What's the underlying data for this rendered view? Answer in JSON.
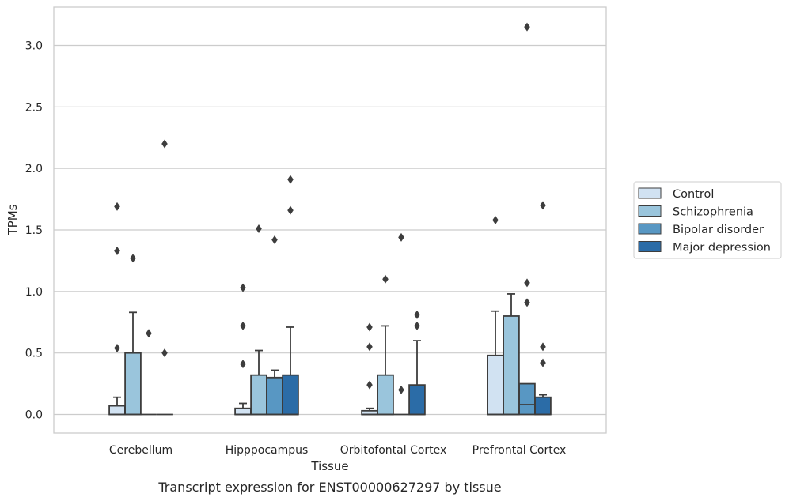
{
  "chart_data": {
    "type": "box",
    "caption": "Transcript expression for ENST00000627297 by tissue",
    "xlabel": "Tissue",
    "ylabel": "TPMs",
    "ylim": [
      -0.15,
      3.32
    ],
    "yticks": [
      0.0,
      0.5,
      1.0,
      1.5,
      2.0,
      2.5,
      3.0
    ],
    "ytick_labels": [
      "0.0",
      "0.5",
      "1.0",
      "1.5",
      "2.0",
      "2.5",
      "3.0"
    ],
    "grid": "horizontal",
    "legend_position": "right",
    "categories": [
      "Cerebellum",
      "Hipppocampus",
      "Orbitofontal Cortex",
      "Prefrontal Cortex"
    ],
    "series": [
      {
        "name": "Control",
        "color": "#d1e2f2",
        "boxes": [
          {
            "whisker_low": 0.0,
            "q1": 0.0,
            "median": 0.0,
            "q3": 0.07,
            "whisker_high": 0.14,
            "outliers": [
              0.54,
              1.33,
              1.69
            ]
          },
          {
            "whisker_low": 0.0,
            "q1": 0.0,
            "median": 0.0,
            "q3": 0.05,
            "whisker_high": 0.09,
            "outliers": [
              0.41,
              0.72,
              1.03
            ]
          },
          {
            "whisker_low": 0.0,
            "q1": 0.0,
            "median": 0.0,
            "q3": 0.03,
            "whisker_high": 0.05,
            "outliers": [
              0.24,
              0.55,
              0.71
            ]
          },
          {
            "whisker_low": 0.0,
            "q1": 0.0,
            "median": 0.0,
            "q3": 0.48,
            "whisker_high": 0.84,
            "outliers": [
              1.58
            ]
          }
        ]
      },
      {
        "name": "Schizophrenia",
        "color": "#9ac5dc",
        "boxes": [
          {
            "whisker_low": 0.0,
            "q1": 0.0,
            "median": 0.0,
            "q3": 0.5,
            "whisker_high": 0.83,
            "outliers": [
              1.27
            ]
          },
          {
            "whisker_low": 0.0,
            "q1": 0.0,
            "median": 0.0,
            "q3": 0.32,
            "whisker_high": 0.52,
            "outliers": [
              1.51
            ]
          },
          {
            "whisker_low": 0.0,
            "q1": 0.0,
            "median": 0.0,
            "q3": 0.32,
            "whisker_high": 0.72,
            "outliers": [
              1.1
            ]
          },
          {
            "whisker_low": 0.0,
            "q1": 0.0,
            "median": 0.0,
            "q3": 0.8,
            "whisker_high": 0.98,
            "outliers": []
          }
        ]
      },
      {
        "name": "Bipolar disorder",
        "color": "#5897c3",
        "boxes": [
          {
            "whisker_low": 0.0,
            "q1": 0.0,
            "median": 0.0,
            "q3": 0.0,
            "whisker_high": 0.0,
            "outliers": [
              0.66
            ]
          },
          {
            "whisker_low": 0.0,
            "q1": 0.0,
            "median": 0.0,
            "q3": 0.3,
            "whisker_high": 0.36,
            "outliers": [
              1.42
            ]
          },
          {
            "whisker_low": 0.0,
            "q1": 0.0,
            "median": 0.0,
            "q3": 0.0,
            "whisker_high": 0.0,
            "outliers": [
              0.2,
              1.44
            ]
          },
          {
            "whisker_low": 0.0,
            "q1": 0.0,
            "median": 0.08,
            "q3": 0.25,
            "whisker_high": 0.25,
            "outliers": [
              0.91,
              1.07,
              3.15
            ]
          }
        ]
      },
      {
        "name": "Major depression",
        "color": "#2b6ca7",
        "boxes": [
          {
            "whisker_low": 0.0,
            "q1": 0.0,
            "median": 0.0,
            "q3": 0.0,
            "whisker_high": 0.0,
            "outliers": [
              0.5,
              2.2
            ]
          },
          {
            "whisker_low": 0.0,
            "q1": 0.0,
            "median": 0.0,
            "q3": 0.32,
            "whisker_high": 0.71,
            "outliers": [
              1.66,
              1.91
            ]
          },
          {
            "whisker_low": 0.0,
            "q1": 0.0,
            "median": 0.0,
            "q3": 0.24,
            "whisker_high": 0.6,
            "outliers": [
              0.72,
              0.81
            ]
          },
          {
            "whisker_low": 0.0,
            "q1": 0.0,
            "median": 0.0,
            "q3": 0.14,
            "whisker_high": 0.16,
            "outliers": [
              0.42,
              0.55,
              1.7
            ]
          }
        ]
      }
    ]
  }
}
